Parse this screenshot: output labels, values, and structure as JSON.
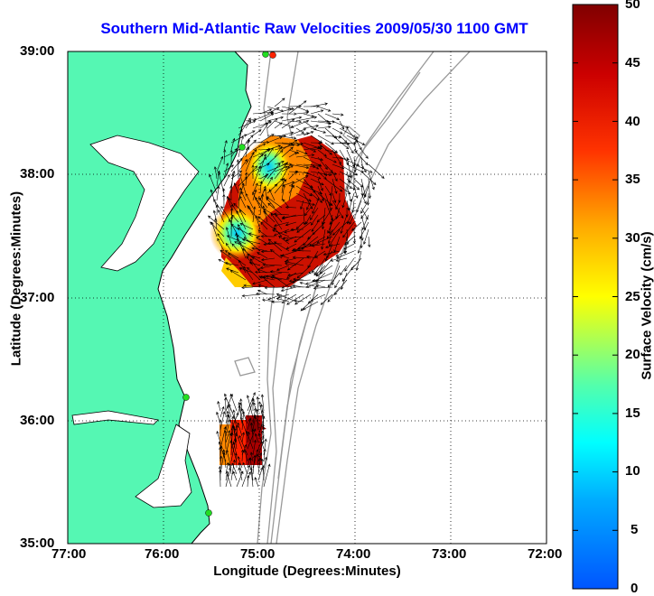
{
  "title": "Southern Mid-Atlantic Raw Velocities 2009/05/30 1100 GMT",
  "xlabel": "Longitude (Degrees:Minutes)",
  "ylabel": "Latitude (Degrees:Minutes)",
  "colorbar": {
    "label": "Surface Velocity (cm/s)",
    "ticks": [
      "0",
      "5",
      "10",
      "15",
      "20",
      "25",
      "30",
      "35",
      "40",
      "45",
      "50"
    ],
    "range": [
      0,
      50
    ]
  },
  "axes": {
    "xticks": [
      "77:00",
      "76:00",
      "75:00",
      "74:00",
      "73:00",
      "72:00"
    ],
    "yticks": [
      "39:00",
      "38:00",
      "37:00",
      "36:00",
      "35:00"
    ]
  },
  "colors": {
    "land": "#55f7b3",
    "title": "#0000ff",
    "bathymetry": "#999999",
    "station": "#22dd22",
    "station_alt": "#ff2200"
  }
}
